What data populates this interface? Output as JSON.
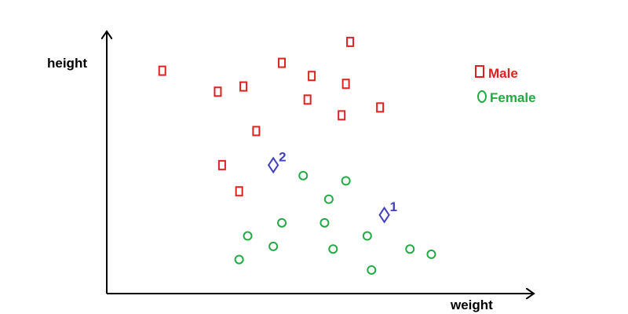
{
  "chart_data": {
    "type": "scatter",
    "title": "",
    "xlabel": "weight",
    "ylabel": "height",
    "xlim": [
      0,
      100
    ],
    "ylim": [
      0,
      100
    ],
    "grid": false,
    "legend_position": "top-right",
    "series": [
      {
        "name": "Male",
        "marker": "square",
        "color": "#e02020",
        "points": [
          {
            "x": 13,
            "y": 85
          },
          {
            "x": 26,
            "y": 77
          },
          {
            "x": 32,
            "y": 79
          },
          {
            "x": 41,
            "y": 88
          },
          {
            "x": 48,
            "y": 83
          },
          {
            "x": 57,
            "y": 96
          },
          {
            "x": 56,
            "y": 80
          },
          {
            "x": 47,
            "y": 74
          },
          {
            "x": 55,
            "y": 68
          },
          {
            "x": 64,
            "y": 71
          },
          {
            "x": 35,
            "y": 62
          },
          {
            "x": 27,
            "y": 49
          },
          {
            "x": 31,
            "y": 39
          }
        ]
      },
      {
        "name": "Female",
        "marker": "circle",
        "color": "#22aa44",
        "points": [
          {
            "x": 46,
            "y": 45
          },
          {
            "x": 56,
            "y": 43
          },
          {
            "x": 52,
            "y": 36
          },
          {
            "x": 41,
            "y": 27
          },
          {
            "x": 51,
            "y": 27
          },
          {
            "x": 33,
            "y": 22
          },
          {
            "x": 39,
            "y": 18
          },
          {
            "x": 53,
            "y": 17
          },
          {
            "x": 61,
            "y": 22
          },
          {
            "x": 31,
            "y": 13
          },
          {
            "x": 71,
            "y": 17
          },
          {
            "x": 76,
            "y": 15
          },
          {
            "x": 62,
            "y": 9
          }
        ]
      }
    ],
    "annotations": [
      {
        "label": "2",
        "marker": "diamond",
        "color": "#4040c0",
        "x": 39,
        "y": 49
      },
      {
        "label": "1",
        "marker": "diamond",
        "color": "#4040c0",
        "x": 65,
        "y": 30
      }
    ]
  }
}
